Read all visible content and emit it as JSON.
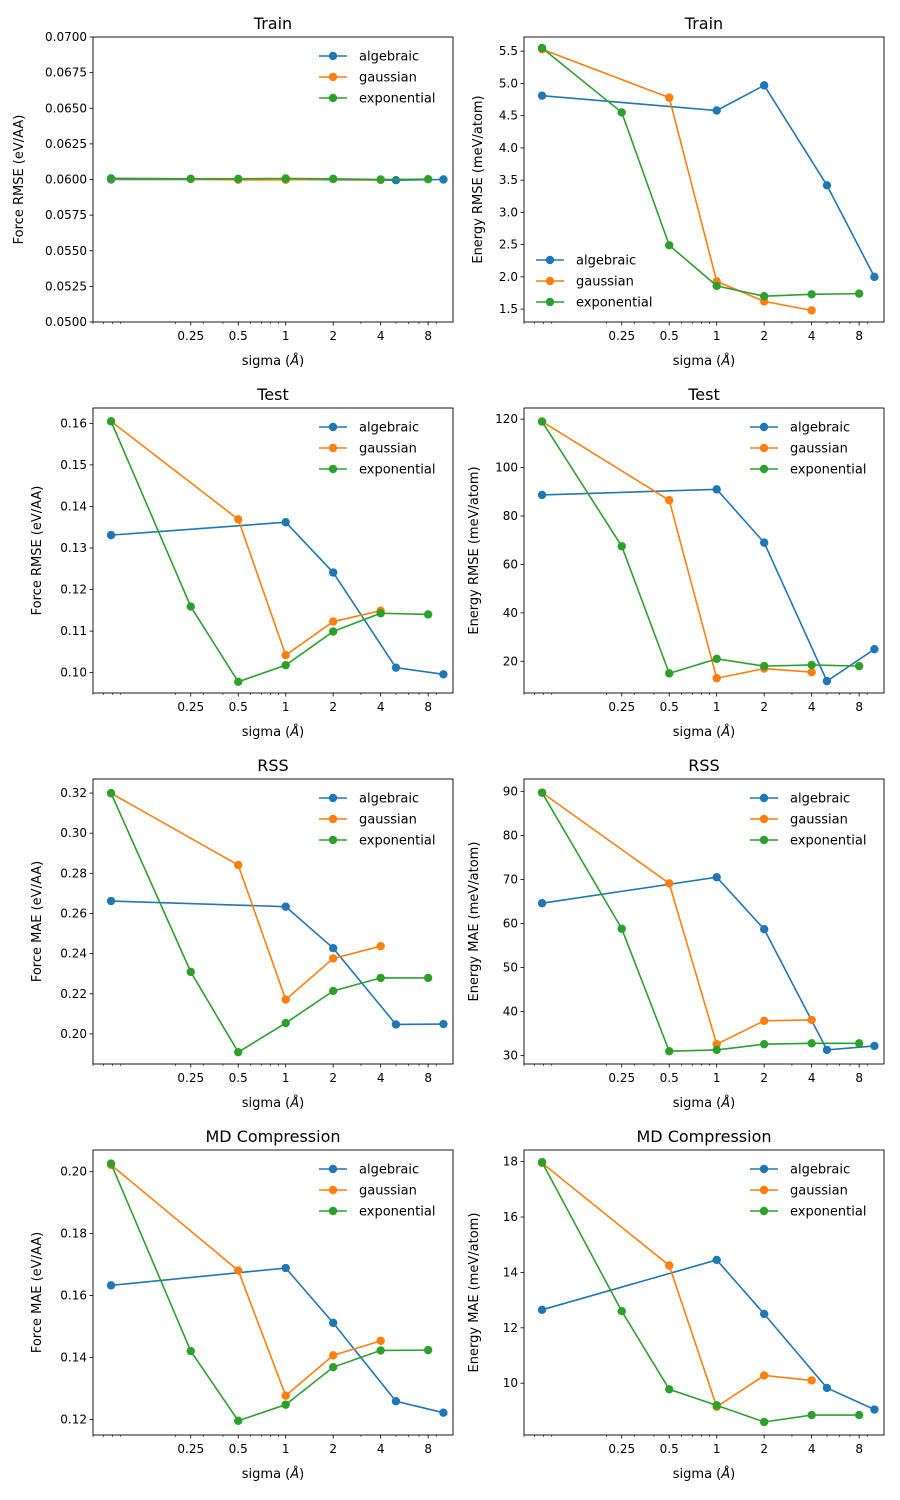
{
  "colors": {
    "algebraic": "#1f77b4",
    "gaussian": "#ff7f0e",
    "exponential": "#2ca02c"
  },
  "chart_data": [
    {
      "type": "line",
      "title": "Train",
      "xlabel": "sigma ($\\AA$)",
      "ylabel": "Force RMSE (eV/AA)",
      "xscale": "log",
      "xlim": [
        0.06,
        11.5
      ],
      "ylim": [
        0.05,
        0.07
      ],
      "xtick_labels": [
        "0.25",
        "0.5",
        "1",
        "2",
        "4",
        "8"
      ],
      "ytick_labels": [
        "0.0500",
        "0.0525",
        "0.0550",
        "0.0575",
        "0.0600",
        "0.0625",
        "0.0650",
        "0.0675",
        "0.0700"
      ],
      "legend_position": "upper right",
      "series": [
        {
          "name": "algebraic",
          "x": [
            0.0781,
            1,
            5,
            10
          ],
          "y": [
            0.06,
            0.06,
            0.05995,
            0.06
          ]
        },
        {
          "name": "gaussian",
          "x": [
            0.0781,
            0.25,
            0.5,
            1,
            2,
            4
          ],
          "y": [
            0.06005,
            0.06003,
            0.05998,
            0.05998,
            0.06003,
            0.05997
          ]
        },
        {
          "name": "exponential",
          "x": [
            0.0781,
            0.25,
            0.5,
            1,
            2,
            4,
            8
          ],
          "y": [
            0.06008,
            0.06005,
            0.06005,
            0.06007,
            0.06005,
            0.06,
            0.06002
          ]
        }
      ]
    },
    {
      "type": "line",
      "title": "Train",
      "xlabel": "sigma ($\\AA$)",
      "ylabel": "Energy RMSE (meV/atom)",
      "xscale": "log",
      "xlim": [
        0.06,
        11.5
      ],
      "ylim": [
        1.3,
        5.72
      ],
      "xtick_labels": [
        "0.25",
        "0.5",
        "1",
        "2",
        "4",
        "8"
      ],
      "ytick_labels": [
        "1.5",
        "2.0",
        "2.5",
        "3.0",
        "3.5",
        "4.0",
        "4.5",
        "5.0",
        "5.5"
      ],
      "legend_position": "lower left",
      "series": [
        {
          "name": "algebraic",
          "x": [
            0.0781,
            1,
            2,
            5,
            10
          ],
          "y": [
            4.81,
            4.58,
            4.97,
            3.42,
            2.0
          ]
        },
        {
          "name": "gaussian",
          "x": [
            0.0781,
            0.5,
            1,
            2,
            4
          ],
          "y": [
            5.53,
            4.78,
            1.93,
            1.62,
            1.48
          ]
        },
        {
          "name": "exponential",
          "x": [
            0.0781,
            0.25,
            0.5,
            1,
            2,
            4,
            8
          ],
          "y": [
            5.55,
            4.55,
            2.49,
            1.86,
            1.7,
            1.73,
            1.74
          ]
        }
      ]
    },
    {
      "type": "line",
      "title": "Test",
      "xlabel": "sigma ($\\AA$)",
      "ylabel": "Force RMSE (eV/AA)",
      "xscale": "log",
      "xlim": [
        0.06,
        11.5
      ],
      "ylim": [
        0.0951,
        0.1637
      ],
      "xtick_labels": [
        "0.25",
        "0.5",
        "1",
        "2",
        "4",
        "8"
      ],
      "ytick_labels": [
        "0.10",
        "0.11",
        "0.12",
        "0.13",
        "0.14",
        "0.15",
        "0.16"
      ],
      "legend_position": "upper right",
      "series": [
        {
          "name": "algebraic",
          "x": [
            0.0781,
            1,
            2,
            5,
            10
          ],
          "y": [
            0.1331,
            0.1362,
            0.1241,
            0.1012,
            0.0996
          ]
        },
        {
          "name": "gaussian",
          "x": [
            0.0781,
            0.5,
            1,
            2,
            4
          ],
          "y": [
            0.1605,
            0.1369,
            0.1042,
            0.1123,
            0.1149
          ]
        },
        {
          "name": "exponential",
          "x": [
            0.0781,
            0.25,
            0.5,
            1,
            2,
            4,
            8
          ],
          "y": [
            0.1605,
            0.1159,
            0.0978,
            0.1018,
            0.1099,
            0.1143,
            0.114
          ]
        }
      ]
    },
    {
      "type": "line",
      "title": "Test",
      "xlabel": "sigma ($\\AA$)",
      "ylabel": "Energy RMSE (meV/atom)",
      "xscale": "log",
      "xlim": [
        0.06,
        11.5
      ],
      "ylim": [
        6.9,
        124.6
      ],
      "xtick_labels": [
        "0.25",
        "0.5",
        "1",
        "2",
        "4",
        "8"
      ],
      "ytick_labels": [
        "20",
        "40",
        "60",
        "80",
        "100",
        "120"
      ],
      "legend_position": "upper right",
      "series": [
        {
          "name": "algebraic",
          "x": [
            0.0781,
            1,
            2,
            5,
            10
          ],
          "y": [
            88.7,
            91.0,
            69.0,
            11.8,
            25.0
          ]
        },
        {
          "name": "gaussian",
          "x": [
            0.0781,
            0.5,
            1,
            2,
            4
          ],
          "y": [
            119.0,
            86.5,
            13.0,
            17.0,
            15.5
          ]
        },
        {
          "name": "exponential",
          "x": [
            0.0781,
            0.25,
            0.5,
            1,
            2,
            4,
            8
          ],
          "y": [
            119.0,
            67.5,
            15.0,
            21.0,
            18.0,
            18.5,
            18.0
          ]
        }
      ]
    },
    {
      "type": "line",
      "title": "RSS",
      "xlabel": "sigma ($\\AA$)",
      "ylabel": "Force MAE (eV/AA)",
      "xscale": "log",
      "xlim": [
        0.06,
        11.5
      ],
      "ylim": [
        0.185,
        0.327
      ],
      "xtick_labels": [
        "0.25",
        "0.5",
        "1",
        "2",
        "4",
        "8"
      ],
      "ytick_labels": [
        "0.20",
        "0.22",
        "0.24",
        "0.26",
        "0.28",
        "0.30",
        "0.32"
      ],
      "legend_position": "upper right",
      "series": [
        {
          "name": "algebraic",
          "x": [
            0.0781,
            1,
            2,
            5,
            10
          ],
          "y": [
            0.2662,
            0.2634,
            0.2427,
            0.2047,
            0.2049
          ]
        },
        {
          "name": "gaussian",
          "x": [
            0.0781,
            0.5,
            1,
            2,
            4
          ],
          "y": [
            0.3199,
            0.2841,
            0.2171,
            0.2376,
            0.2437
          ]
        },
        {
          "name": "exponential",
          "x": [
            0.0781,
            0.25,
            0.5,
            1,
            2,
            4,
            8
          ],
          "y": [
            0.3199,
            0.2309,
            0.1909,
            0.2054,
            0.2214,
            0.2279,
            0.2279
          ]
        }
      ]
    },
    {
      "type": "line",
      "title": "RSS",
      "xlabel": "sigma ($\\AA$)",
      "ylabel": "Energy MAE (meV/atom)",
      "xscale": "log",
      "xlim": [
        0.06,
        11.5
      ],
      "ylim": [
        28.1,
        92.8
      ],
      "xtick_labels": [
        "0.25",
        "0.5",
        "1",
        "2",
        "4",
        "8"
      ],
      "ytick_labels": [
        "30",
        "40",
        "50",
        "60",
        "70",
        "80",
        "90"
      ],
      "legend_position": "upper right",
      "series": [
        {
          "name": "algebraic",
          "x": [
            0.0781,
            1,
            2,
            5,
            10
          ],
          "y": [
            64.6,
            70.5,
            58.7,
            31.3,
            32.2
          ]
        },
        {
          "name": "gaussian",
          "x": [
            0.0781,
            0.5,
            1,
            2,
            4
          ],
          "y": [
            89.7,
            69.1,
            32.6,
            37.9,
            38.1
          ]
        },
        {
          "name": "exponential",
          "x": [
            0.0781,
            0.25,
            0.5,
            1,
            2,
            4,
            8
          ],
          "y": [
            89.7,
            58.8,
            31.0,
            31.3,
            32.6,
            32.8,
            32.8
          ]
        }
      ]
    },
    {
      "type": "line",
      "title": "MD Compression",
      "xlabel": "sigma ($\\AA$)",
      "ylabel": "Force MAE (eV/AA)",
      "xscale": "log",
      "xlim": [
        0.06,
        11.5
      ],
      "ylim": [
        0.115,
        0.207
      ],
      "xtick_labels": [
        "0.25",
        "0.5",
        "1",
        "2",
        "4",
        "8"
      ],
      "ytick_labels": [
        "0.12",
        "0.14",
        "0.16",
        "0.18",
        "0.20"
      ],
      "legend_position": "upper right",
      "series": [
        {
          "name": "algebraic",
          "x": [
            0.0781,
            1,
            2,
            5,
            10
          ],
          "y": [
            0.1633,
            0.1689,
            0.1512,
            0.1259,
            0.1222
          ]
        },
        {
          "name": "gaussian",
          "x": [
            0.0781,
            0.5,
            1,
            2,
            4
          ],
          "y": [
            0.2022,
            0.1681,
            0.1277,
            0.1407,
            0.1454
          ]
        },
        {
          "name": "exponential",
          "x": [
            0.0781,
            0.25,
            0.5,
            1,
            2,
            4,
            8
          ],
          "y": [
            0.2026,
            0.1421,
            0.1196,
            0.1248,
            0.1369,
            0.1423,
            0.1424
          ]
        }
      ]
    },
    {
      "type": "line",
      "title": "MD Compression",
      "xlabel": "sigma ($\\AA$)",
      "ylabel": "Energy MAE (meV/atom)",
      "xscale": "log",
      "xlim": [
        0.06,
        11.5
      ],
      "ylim": [
        8.13,
        18.42
      ],
      "xtick_labels": [
        "0.25",
        "0.5",
        "1",
        "2",
        "4",
        "8"
      ],
      "ytick_labels": [
        "10",
        "12",
        "14",
        "16",
        "18"
      ],
      "legend_position": "upper right",
      "series": [
        {
          "name": "algebraic",
          "x": [
            0.0781,
            1,
            2,
            5,
            10
          ],
          "y": [
            12.65,
            14.45,
            12.5,
            9.83,
            9.05
          ]
        },
        {
          "name": "gaussian",
          "x": [
            0.0781,
            0.5,
            1,
            2,
            4
          ],
          "y": [
            17.95,
            14.25,
            9.15,
            10.28,
            10.1
          ]
        },
        {
          "name": "exponential",
          "x": [
            0.0781,
            0.25,
            0.5,
            1,
            2,
            4,
            8
          ],
          "y": [
            17.98,
            12.6,
            9.78,
            9.2,
            8.6,
            8.85,
            8.85
          ]
        }
      ]
    }
  ]
}
